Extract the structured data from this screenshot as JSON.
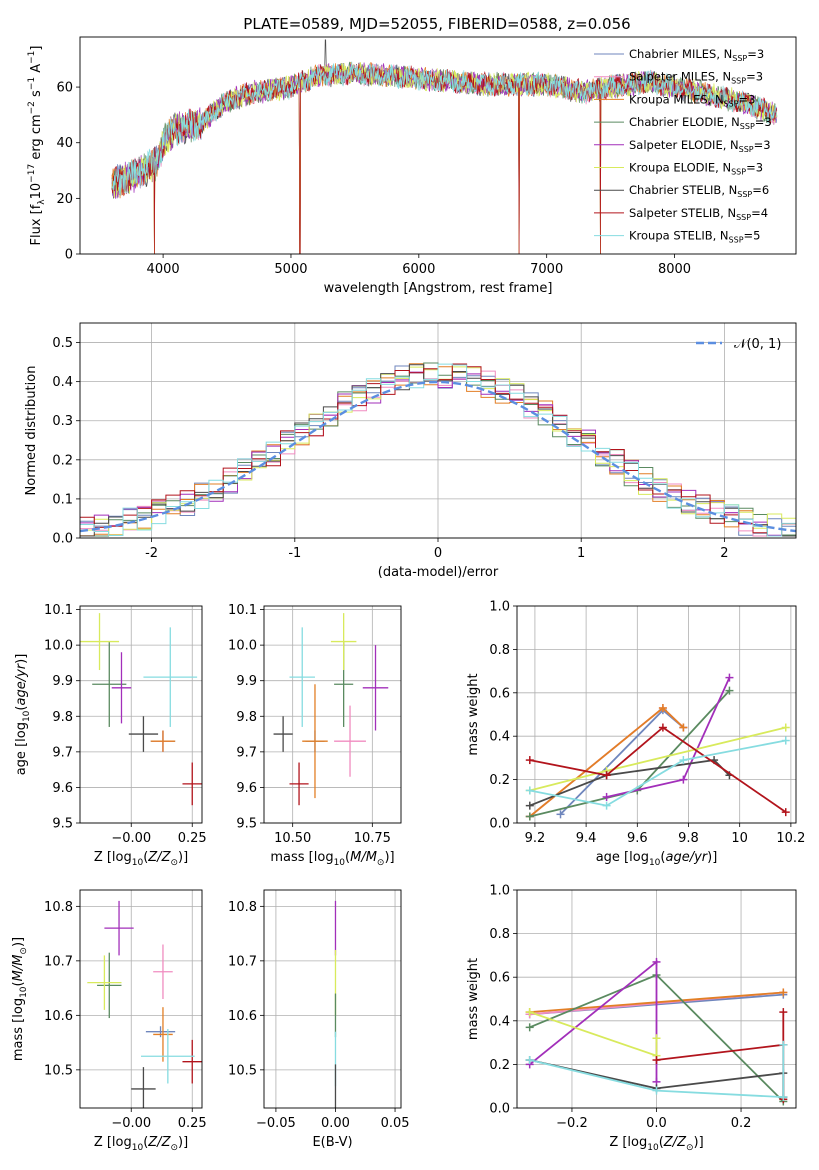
{
  "title": "PLATE=0589, MJD=52055, FIBERID=0588, z=0.056",
  "legend": {
    "models": [
      {
        "base": "Chabrier MILES, N",
        "sub": "SSP",
        "eq": "=3",
        "color": "#6f86bd"
      },
      {
        "base": "Salpeter MILES, N",
        "sub": "SSP",
        "eq": "=3",
        "color": "#f08cc0"
      },
      {
        "base": "Kroupa MILES, N",
        "sub": "SSP",
        "eq": "=3",
        "color": "#e27f26"
      },
      {
        "base": "Chabrier ELODIE, N",
        "sub": "SSP",
        "eq": "=3",
        "color": "#5a8a60"
      },
      {
        "base": "Salpeter ELODIE, N",
        "sub": "SSP",
        "eq": "=3",
        "color": "#a22fba"
      },
      {
        "base": "Kroupa ELODIE, N",
        "sub": "SSP",
        "eq": "=3",
        "color": "#d8ea5c"
      },
      {
        "base": "Chabrier STELIB, N",
        "sub": "SSP",
        "eq": "=6",
        "color": "#4a4a4a"
      },
      {
        "base": "Salpeter STELIB, N",
        "sub": "SSP",
        "eq": "=4",
        "color": "#b2141c"
      },
      {
        "base": "Kroupa STELIB, N",
        "sub": "SSP",
        "eq": "=5",
        "color": "#86dce0"
      }
    ],
    "normal_label": "𝒩(0, 1)",
    "normal_color": "#5b8ee0"
  },
  "chart_data": [
    {
      "type": "line",
      "name": "spectrum",
      "xlabel": "wavelength [Angstrom, rest frame]",
      "ylabel": "Flux [f_λ 10^-17 erg cm^-2 s^-1 A^-1]",
      "xlim": [
        3350,
        8950
      ],
      "ylim": [
        0,
        78
      ],
      "xticks": [
        4000,
        5000,
        6000,
        7000,
        8000
      ],
      "yticks": [
        0,
        20,
        40,
        60
      ],
      "wave_range": [
        3600,
        8800
      ],
      "continuum_anchors": [
        [
          3600,
          25
        ],
        [
          3700,
          27
        ],
        [
          3850,
          30
        ],
        [
          3950,
          33
        ],
        [
          4000,
          40
        ],
        [
          4100,
          45
        ],
        [
          4300,
          47
        ],
        [
          4500,
          55
        ],
        [
          4700,
          58
        ],
        [
          5000,
          60
        ],
        [
          5200,
          64
        ],
        [
          5500,
          65
        ],
        [
          6000,
          63
        ],
        [
          6500,
          61
        ],
        [
          7000,
          61
        ],
        [
          7300,
          58
        ],
        [
          7500,
          60
        ],
        [
          7800,
          62
        ],
        [
          8200,
          58
        ],
        [
          8500,
          55
        ],
        [
          8800,
          50
        ]
      ],
      "absorption_spikes": [
        [
          3933,
          0
        ],
        [
          5070,
          0
        ],
        [
          6785,
          0
        ],
        [
          7420,
          0
        ]
      ],
      "emission_spikes": [
        [
          5270,
          77
        ]
      ],
      "grid": false
    },
    {
      "type": "histogram",
      "name": "residual_distribution",
      "xlabel": "(data-model)/error",
      "ylabel": "Normed distribution",
      "xlim": [
        -2.5,
        2.5
      ],
      "ylim": [
        0,
        0.55
      ],
      "xticks": [
        -2,
        -1,
        0,
        1,
        2
      ],
      "yticks": [
        0.0,
        0.1,
        0.2,
        0.3,
        0.4,
        0.5
      ],
      "bin_width": 0.1,
      "reference_curve": "normal(0,1)",
      "grid": true
    },
    {
      "type": "scatter",
      "name": "age_vs_Z",
      "xlabel": "Z [log10(Z/Z⊙)]",
      "ylabel": "age  [log10(age/yr)]",
      "xlim": [
        -0.21,
        0.29
      ],
      "ylim": [
        9.5,
        10.11
      ],
      "xticks": [
        0.0,
        0.25
      ],
      "xticklabels": [
        "−0.00",
        "0.25"
      ],
      "yticks": [
        9.5,
        9.6,
        9.7,
        9.8,
        9.9,
        10.0,
        10.1
      ],
      "points": [
        {
          "model": 0,
          "x": 0.13,
          "y": 9.73,
          "xerr": 0.05,
          "yerr": 0.03
        },
        {
          "model": 1,
          "x": 0.13,
          "y": 9.73,
          "xerr": 0.04,
          "yerr": 0.03
        },
        {
          "model": 2,
          "x": 0.13,
          "y": 9.73,
          "xerr": 0.05,
          "yerr": 0.03
        },
        {
          "model": 3,
          "x": -0.09,
          "y": 9.89,
          "xerr": 0.07,
          "yerr": 0.12
        },
        {
          "model": 4,
          "x": -0.04,
          "y": 9.88,
          "xerr": 0.04,
          "yerr": 0.1
        },
        {
          "model": 5,
          "x": -0.13,
          "y": 10.01,
          "xerr": 0.08,
          "yerr": 0.08
        },
        {
          "model": 6,
          "x": 0.05,
          "y": 9.75,
          "xerr": 0.06,
          "yerr": 0.05
        },
        {
          "model": 7,
          "x": 0.25,
          "y": 9.61,
          "xerr": 0.04,
          "yerr": 0.06
        },
        {
          "model": 8,
          "x": 0.16,
          "y": 9.91,
          "xerr": 0.11,
          "yerr": 0.14
        }
      ],
      "grid": true
    },
    {
      "type": "scatter",
      "name": "age_vs_mass",
      "xlabel": "mass [log10(M/M⊙)]",
      "ylabel": "",
      "xlim": [
        10.41,
        10.84
      ],
      "ylim": [
        9.5,
        10.11
      ],
      "xticks": [
        10.5,
        10.75
      ],
      "xticklabels": [
        "10.50",
        "10.75"
      ],
      "yticks": [
        9.5,
        9.6,
        9.7,
        9.8,
        9.9,
        10.0,
        10.1
      ],
      "points": [
        {
          "model": 0,
          "x": 10.57,
          "y": 9.73,
          "xerr": 0.03,
          "yerr": 0.03
        },
        {
          "model": 1,
          "x": 10.68,
          "y": 9.73,
          "xerr": 0.05,
          "yerr": 0.1
        },
        {
          "model": 2,
          "x": 10.57,
          "y": 9.73,
          "xerr": 0.04,
          "yerr": 0.16
        },
        {
          "model": 3,
          "x": 10.66,
          "y": 9.89,
          "xerr": 0.03,
          "yerr": 0.12
        },
        {
          "model": 4,
          "x": 10.76,
          "y": 9.88,
          "xerr": 0.04,
          "yerr": 0.12
        },
        {
          "model": 5,
          "x": 10.66,
          "y": 10.01,
          "xerr": 0.04,
          "yerr": 0.08
        },
        {
          "model": 6,
          "x": 10.47,
          "y": 9.75,
          "xerr": 0.03,
          "yerr": 0.05
        },
        {
          "model": 7,
          "x": 10.52,
          "y": 9.61,
          "xerr": 0.03,
          "yerr": 0.06
        },
        {
          "model": 8,
          "x": 10.53,
          "y": 9.91,
          "xerr": 0.04,
          "yerr": 0.14
        }
      ],
      "grid": true
    },
    {
      "type": "line",
      "name": "mass_weight_vs_age",
      "xlabel": "age  [log10(age/yr)]",
      "ylabel": "mass weight",
      "xlim": [
        9.13,
        10.22
      ],
      "ylim": [
        0,
        1.0
      ],
      "xticks": [
        9.2,
        9.4,
        9.6,
        9.8,
        10.0,
        10.2
      ],
      "yticks": [
        0.0,
        0.2,
        0.4,
        0.6,
        0.8,
        1.0
      ],
      "series": [
        {
          "model": 0,
          "points": [
            [
              9.3,
              0.04
            ],
            [
              9.7,
              0.52
            ],
            [
              9.78,
              0.44
            ]
          ]
        },
        {
          "model": 1,
          "points": [
            [
              9.18,
              0.03
            ],
            [
              9.7,
              0.53
            ],
            [
              9.78,
              0.44
            ]
          ]
        },
        {
          "model": 2,
          "points": [
            [
              9.18,
              0.03
            ],
            [
              9.7,
              0.53
            ],
            [
              9.78,
              0.44
            ]
          ]
        },
        {
          "model": 3,
          "points": [
            [
              9.18,
              0.03
            ],
            [
              9.6,
              0.15
            ],
            [
              9.96,
              0.61
            ]
          ]
        },
        {
          "model": 4,
          "points": [
            [
              9.48,
              0.12
            ],
            [
              9.78,
              0.2
            ],
            [
              9.96,
              0.67
            ]
          ]
        },
        {
          "model": 5,
          "points": [
            [
              9.18,
              0.15
            ],
            [
              9.48,
              0.24
            ],
            [
              10.18,
              0.44
            ]
          ]
        },
        {
          "model": 6,
          "points": [
            [
              9.18,
              0.08
            ],
            [
              9.48,
              0.22
            ],
            [
              9.9,
              0.29
            ],
            [
              9.96,
              0.22
            ]
          ]
        },
        {
          "model": 7,
          "points": [
            [
              9.18,
              0.29
            ],
            [
              9.48,
              0.22
            ],
            [
              9.7,
              0.44
            ],
            [
              10.18,
              0.05
            ]
          ]
        },
        {
          "model": 8,
          "points": [
            [
              9.18,
              0.15
            ],
            [
              9.48,
              0.08
            ],
            [
              9.78,
              0.29
            ],
            [
              10.18,
              0.38
            ]
          ]
        }
      ],
      "grid": true
    },
    {
      "type": "scatter",
      "name": "mass_vs_Z",
      "xlabel": "Z [log10(Z/Z⊙)]",
      "ylabel": "mass [log10(M/M⊙)]",
      "xlim": [
        -0.21,
        0.29
      ],
      "ylim": [
        10.43,
        10.83
      ],
      "xticks": [
        0.0,
        0.25
      ],
      "xticklabels": [
        "−0.00",
        "0.25"
      ],
      "yticks": [
        10.5,
        10.6,
        10.7,
        10.8
      ],
      "points": [
        {
          "model": 0,
          "x": 0.12,
          "y": 10.57,
          "xerr": 0.06,
          "yerr": 0.01
        },
        {
          "model": 1,
          "x": 0.13,
          "y": 10.68,
          "xerr": 0.04,
          "yerr": 0.05
        },
        {
          "model": 2,
          "x": 0.13,
          "y": 10.565,
          "xerr": 0.04,
          "yerr": 0.05
        },
        {
          "model": 3,
          "x": -0.09,
          "y": 10.655,
          "xerr": 0.05,
          "yerr": 0.06
        },
        {
          "model": 4,
          "x": -0.05,
          "y": 10.76,
          "xerr": 0.06,
          "yerr": 0.05
        },
        {
          "model": 5,
          "x": -0.11,
          "y": 10.66,
          "xerr": 0.07,
          "yerr": 0.05
        },
        {
          "model": 6,
          "x": 0.05,
          "y": 10.465,
          "xerr": 0.05,
          "yerr": 0.04
        },
        {
          "model": 7,
          "x": 0.25,
          "y": 10.515,
          "xerr": 0.04,
          "yerr": 0.04
        },
        {
          "model": 8,
          "x": 0.15,
          "y": 10.525,
          "xerr": 0.11,
          "yerr": 0.05
        }
      ],
      "grid": true
    },
    {
      "type": "scatter",
      "name": "mass_vs_EBV",
      "xlabel": "E(B-V)",
      "ylabel": "",
      "xlim": [
        -0.06,
        0.055
      ],
      "ylim": [
        10.43,
        10.83
      ],
      "xticks": [
        -0.05,
        0.0,
        0.05
      ],
      "xticklabels": [
        "−0.05",
        "0.00",
        "0.05"
      ],
      "yticks": [
        10.5,
        10.6,
        10.7,
        10.8
      ],
      "points": [
        {
          "model": 4,
          "x": 0.0,
          "y": 10.76,
          "xerr": 0.0,
          "yerr": 0.05
        },
        {
          "model": 5,
          "x": 0.0,
          "y": 10.66,
          "xerr": 0.0,
          "yerr": 0.06
        },
        {
          "model": 3,
          "x": 0.0,
          "y": 10.6,
          "xerr": 0.0,
          "yerr": 0.04
        },
        {
          "model": 8,
          "x": 0.0,
          "y": 10.52,
          "xerr": 0.0,
          "yerr": 0.05
        },
        {
          "model": 6,
          "x": 0.0,
          "y": 10.47,
          "xerr": 0.0,
          "yerr": 0.04
        }
      ],
      "grid": true
    },
    {
      "type": "line",
      "name": "mass_weight_vs_Z",
      "xlabel": "Z [log10(Z/Z⊙)]",
      "ylabel": "mass weight",
      "xlim": [
        -0.33,
        0.33
      ],
      "ylim": [
        0,
        1.0
      ],
      "xticks": [
        -0.2,
        0.0,
        0.2
      ],
      "xticklabels": [
        "−0.2",
        "0.0",
        "0.2"
      ],
      "yticks": [
        0.0,
        0.2,
        0.4,
        0.6,
        0.8,
        1.0
      ],
      "series": [
        {
          "model": 0,
          "points": [
            [
              -0.3,
              0.43
            ],
            [
              0.3,
              0.52
            ]
          ]
        },
        {
          "model": 1,
          "points": [
            [
              -0.3,
              0.43
            ],
            [
              0.3,
              0.53
            ]
          ]
        },
        {
          "model": 2,
          "points": [
            [
              -0.3,
              0.44
            ],
            [
              0.3,
              0.53
            ]
          ]
        },
        {
          "model": 3,
          "points": [
            [
              -0.3,
              0.37
            ],
            [
              0.0,
              0.61
            ],
            [
              0.3,
              0.03
            ]
          ]
        },
        {
          "model": 4,
          "points": [
            [
              -0.3,
              0.2
            ],
            [
              0.0,
              0.67
            ],
            [
              0.0,
              0.12
            ]
          ]
        },
        {
          "model": 5,
          "points": [
            [
              -0.3,
              0.44
            ],
            [
              0.0,
              0.24
            ],
            [
              0.0,
              0.32
            ]
          ]
        },
        {
          "model": 6,
          "points": [
            [
              -0.3,
              0.22
            ],
            [
              0.0,
              0.09
            ],
            [
              0.3,
              0.16
            ],
            [
              0.3,
              0.05
            ]
          ]
        },
        {
          "model": 7,
          "points": [
            [
              0.0,
              0.22
            ],
            [
              0.3,
              0.29
            ],
            [
              0.3,
              0.44
            ],
            [
              0.3,
              0.04
            ]
          ]
        },
        {
          "model": 8,
          "points": [
            [
              -0.3,
              0.22
            ],
            [
              0.0,
              0.08
            ],
            [
              0.3,
              0.05
            ],
            [
              0.3,
              0.29
            ]
          ]
        }
      ],
      "grid": true
    }
  ]
}
